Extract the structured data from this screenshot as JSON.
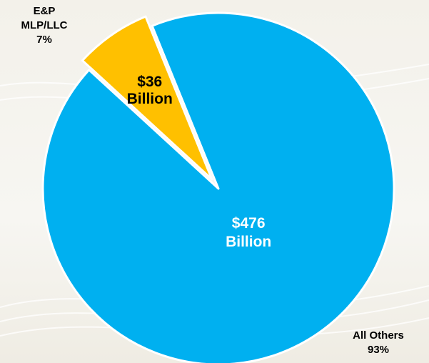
{
  "chart_data": {
    "type": "pie",
    "slices": [
      {
        "name_lines": [
          "E&P",
          "MLP/LLC",
          "7%"
        ],
        "value": 36,
        "value_label_lines": [
          "$36",
          "Billion"
        ],
        "percent": 7,
        "color": "#ffc000",
        "exploded": true
      },
      {
        "name_lines": [
          "All Others",
          "93%"
        ],
        "value": 476,
        "value_label_lines": [
          "$476",
          "Billion"
        ],
        "percent": 93,
        "color": "#00b0f0",
        "exploded": false
      }
    ]
  },
  "colors": {
    "background": "#f6f5f0",
    "slice_outline": "#ffffff",
    "inside_label_small_slice": "#000000",
    "inside_label_large_slice": "#ffffff",
    "outside_label": "#000000"
  }
}
